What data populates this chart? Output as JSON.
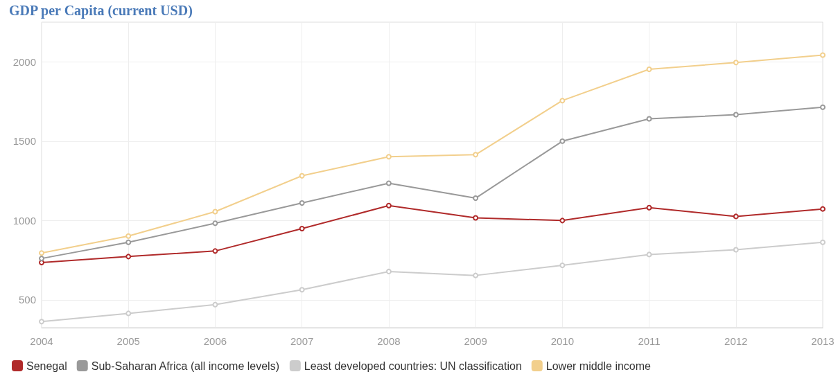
{
  "chart_data": {
    "type": "line",
    "title": "GDP per Capita (current USD)",
    "categories": [
      "2004",
      "2005",
      "2006",
      "2007",
      "2008",
      "2009",
      "2010",
      "2011",
      "2012",
      "2013"
    ],
    "series": [
      {
        "name": "Senegal",
        "color": "#b02a2a",
        "values": [
          735,
          773,
          808,
          949,
          1094,
          1017,
          1000,
          1081,
          1026,
          1073
        ]
      },
      {
        "name": "Sub-Saharan Africa (all income levels)",
        "color": "#999999",
        "values": [
          761,
          863,
          983,
          1111,
          1235,
          1141,
          1500,
          1641,
          1667,
          1714
        ]
      },
      {
        "name": "Least developed countries: UN classification",
        "color": "#cccccc",
        "values": [
          363,
          415,
          470,
          564,
          679,
          654,
          718,
          786,
          816,
          863
        ]
      },
      {
        "name": "Lower middle income",
        "color": "#f2cf8c",
        "values": [
          795,
          902,
          1056,
          1282,
          1402,
          1415,
          1756,
          1953,
          1996,
          2043
        ]
      }
    ],
    "ylim": [
      325,
      2250
    ],
    "yticks": [
      500,
      1000,
      1500,
      2000
    ],
    "grid": true,
    "legend": "bottom left",
    "marker": "circle",
    "line_style": "solid"
  }
}
